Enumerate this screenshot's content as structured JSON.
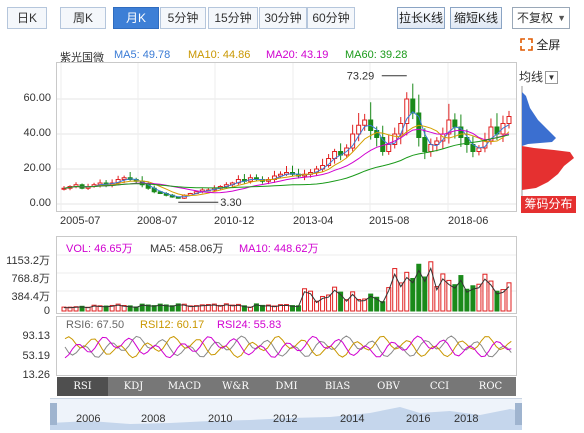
{
  "toolbar": {
    "periods": [
      {
        "label": "日K",
        "active": false
      },
      {
        "label": "周K",
        "active": false
      },
      {
        "label": "月K",
        "active": true
      },
      {
        "label": "5分钟",
        "active": false
      },
      {
        "label": "15分钟",
        "active": false
      },
      {
        "label": "30分钟",
        "active": false
      },
      {
        "label": "60分钟",
        "active": false
      }
    ],
    "stretch_label": "拉长K线",
    "shrink_label": "缩短K线",
    "adjust_value": "不复权",
    "fullscreen_label": "全屏"
  },
  "main_chart": {
    "stock_name": "紫光国微",
    "ma5": "MA5: 49.78",
    "ma10": "MA10: 44.86",
    "ma20": "MA20: 43.19",
    "ma60": "MA60: 39.28",
    "y_ticks": [
      "60.00",
      "40.00",
      "20.00",
      "0.00"
    ],
    "x_ticks": [
      "2005-07",
      "2008-07",
      "2010-12",
      "2013-04",
      "2015-08",
      "2018-06"
    ],
    "max_label": "73.29",
    "min_label": "3.30",
    "colors": {
      "ma5": "#3a7bd5",
      "ma10": "#d4a000",
      "ma20": "#d000d0",
      "ma60": "#1a9a1a",
      "up": "#e02020",
      "down": "#1a8a1a"
    }
  },
  "side_panel": {
    "ma_select": "均线",
    "chip_label": "筹码分布"
  },
  "volume": {
    "vol": "VOL: 46.65万",
    "ma5": "MA5: 458.06万",
    "ma10": "MA10: 448.62万",
    "y_ticks": [
      "1153.2万",
      "768.8万",
      "384.4万",
      "0"
    ]
  },
  "rsi": {
    "rsi6": "RSI6: 67.50",
    "rsi12": "RSI12: 60.17",
    "rsi24": "RSI24: 55.83",
    "y_ticks": [
      "93.13",
      "53.19",
      "13.26"
    ]
  },
  "indicator_tabs": [
    "RSI",
    "KDJ",
    "MACD",
    "W&R",
    "DMI",
    "BIAS",
    "OBV",
    "CCI",
    "ROC"
  ],
  "navigator": {
    "years": [
      "2006",
      "2008",
      "2010",
      "2012",
      "2014",
      "2016",
      "2018"
    ]
  },
  "chart_data": {
    "type": "candlestick",
    "title": "紫光国微",
    "x_labels": [
      "2005-07",
      "2008-07",
      "2010-12",
      "2013-04",
      "2015-08",
      "2018-06"
    ],
    "ylim": [
      0,
      80
    ],
    "close": [
      9,
      10,
      11,
      9,
      10,
      11,
      12,
      11,
      12,
      14,
      15,
      14,
      13,
      11,
      9,
      7,
      6,
      5,
      4,
      3.3,
      5,
      6,
      7,
      8,
      8,
      9,
      10,
      11,
      12,
      14,
      13,
      15,
      14,
      13,
      14,
      16,
      17,
      18,
      17,
      16,
      17,
      18,
      20,
      22,
      26,
      30,
      28,
      32,
      40,
      45,
      48,
      42,
      38,
      30,
      34,
      40,
      46,
      60,
      52,
      38,
      30,
      34,
      36,
      40,
      48,
      44,
      38,
      34,
      30,
      32,
      36,
      44,
      40,
      46,
      50
    ],
    "high_point": 73.29,
    "low_point": 3.3
  }
}
